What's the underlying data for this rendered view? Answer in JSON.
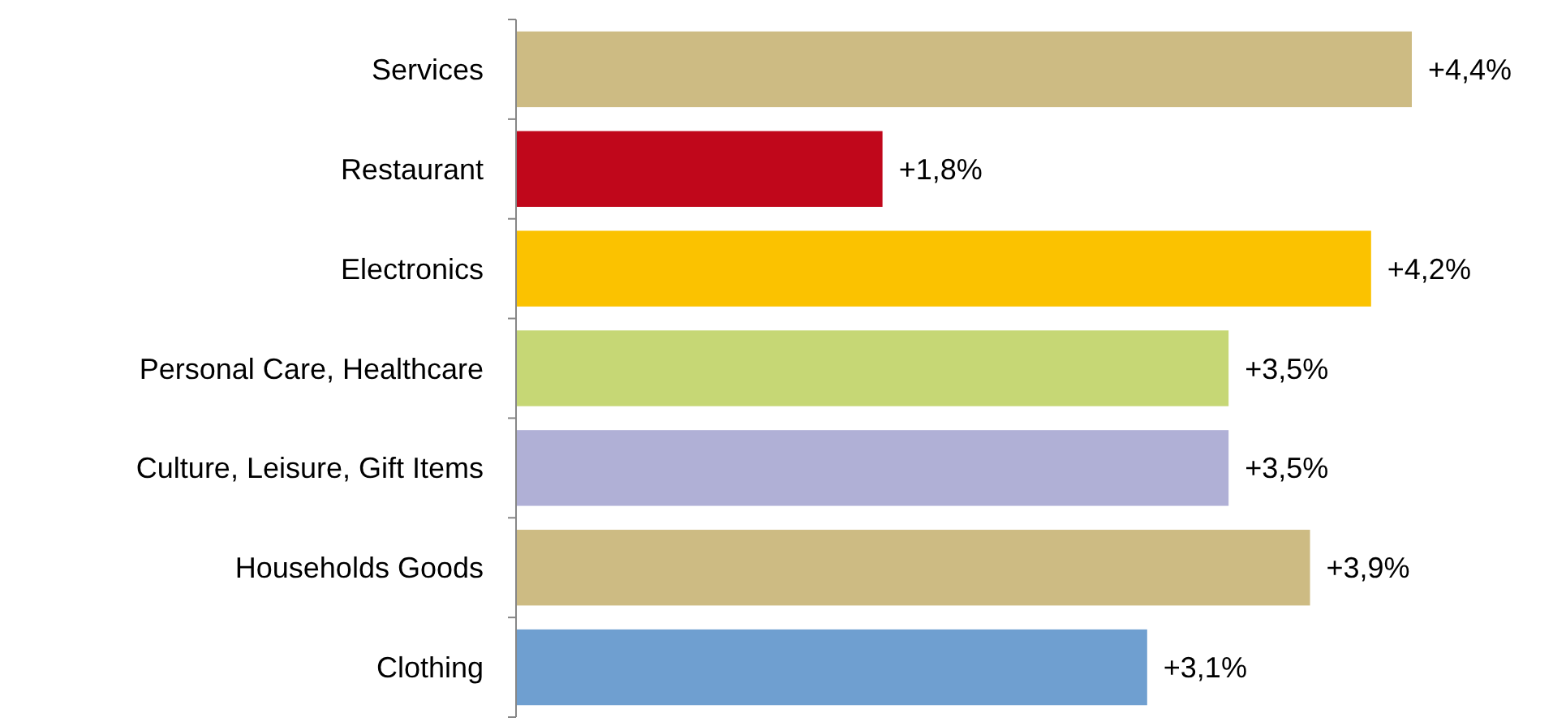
{
  "chart_data": {
    "type": "bar",
    "orientation": "horizontal",
    "categories": [
      "Services",
      "Restaurant",
      "Electronics",
      "Personal Care, Healthcare",
      "Culture, Leisure, Gift Items",
      "Households Goods",
      "Clothing"
    ],
    "values": [
      4.4,
      1.8,
      4.2,
      3.5,
      3.5,
      3.9,
      3.1
    ],
    "colors": [
      "#cdbb83",
      "#c0071b",
      "#fbc200",
      "#c6d775",
      "#b0b0d6",
      "#cdbb83",
      "#6f9fd0"
    ],
    "value_labels": [
      "+4,4%",
      "+1,8%",
      "+4,2%",
      "+3,5%",
      "+3,5%",
      "+3,9%",
      "+3,1%"
    ]
  }
}
